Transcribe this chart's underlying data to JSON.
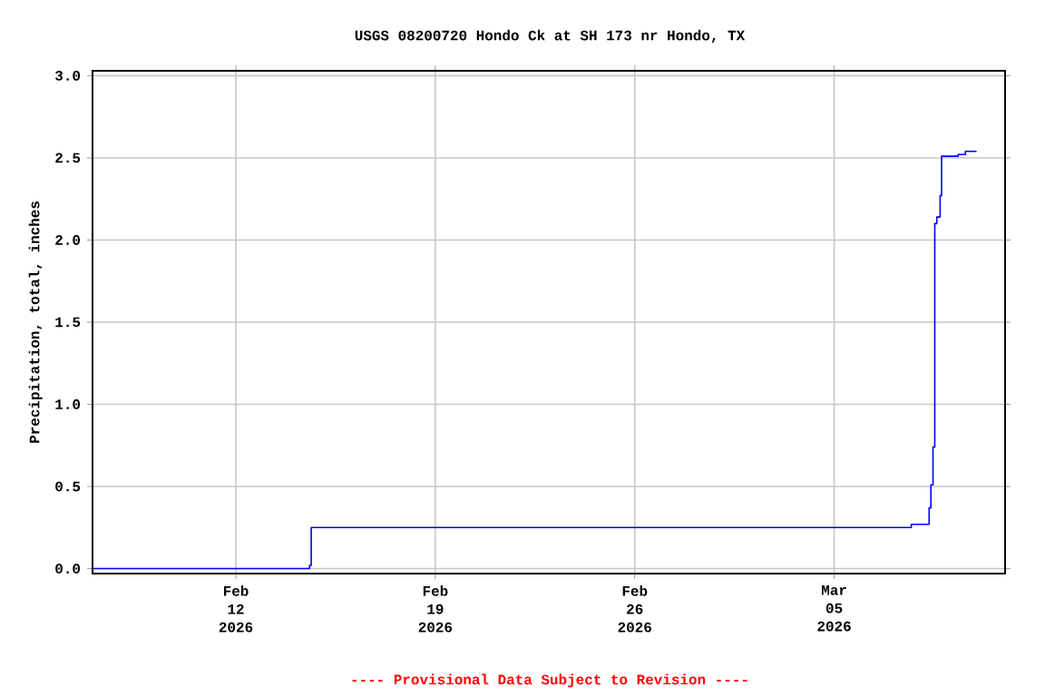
{
  "chart_data": {
    "type": "step",
    "title": "USGS 08200720 Hondo Ck at SH 173 nr Hondo, TX",
    "ylabel": "Precipitation, total, inches",
    "x": [
      "2026-02-07T00:00",
      "2026-02-14T14:00",
      "2026-02-14T15:30",
      "2026-03-07T17:00",
      "2026-03-08T08:00",
      "2026-03-08T09:30",
      "2026-03-08T11:15",
      "2026-03-08T12:45",
      "2026-03-08T14:30",
      "2026-03-08T17:15",
      "2026-03-08T18:30",
      "2026-03-09T08:30",
      "2026-03-09T14:30",
      "2026-03-10T00:00"
    ],
    "series": [
      {
        "color": "#0000ff",
        "values": [
          0.0,
          0.02,
          0.25,
          0.27,
          0.37,
          0.51,
          0.74,
          2.1,
          2.14,
          2.27,
          2.51,
          2.52,
          2.54,
          2.54
        ]
      }
    ],
    "xlim": [
      "2026-02-06T23:15",
      "2026-03-11T00:00"
    ],
    "xticks": [
      {
        "value": "2026-02-12",
        "label": "Feb 12 2026"
      },
      {
        "value": "2026-02-19",
        "label": "Feb 19 2026"
      },
      {
        "value": "2026-02-26",
        "label": "Feb 26 2026"
      },
      {
        "value": "2026-03-05",
        "label": "Mar 05 2026"
      }
    ],
    "ylim": [
      -0.03,
      3.03
    ],
    "yticks": [
      {
        "value": 0,
        "label": "0.0"
      },
      {
        "value": 0.5,
        "label": "0.5"
      },
      {
        "value": 1,
        "label": "1.0"
      },
      {
        "value": 1.5,
        "label": "1.5"
      },
      {
        "value": 2,
        "label": "2.0"
      },
      {
        "value": 2.5,
        "label": "2.5"
      },
      {
        "value": 3,
        "label": "3.0"
      }
    ],
    "grid": true,
    "annotations": [
      "---- Provisional Data Subject to Revision ----"
    ]
  }
}
